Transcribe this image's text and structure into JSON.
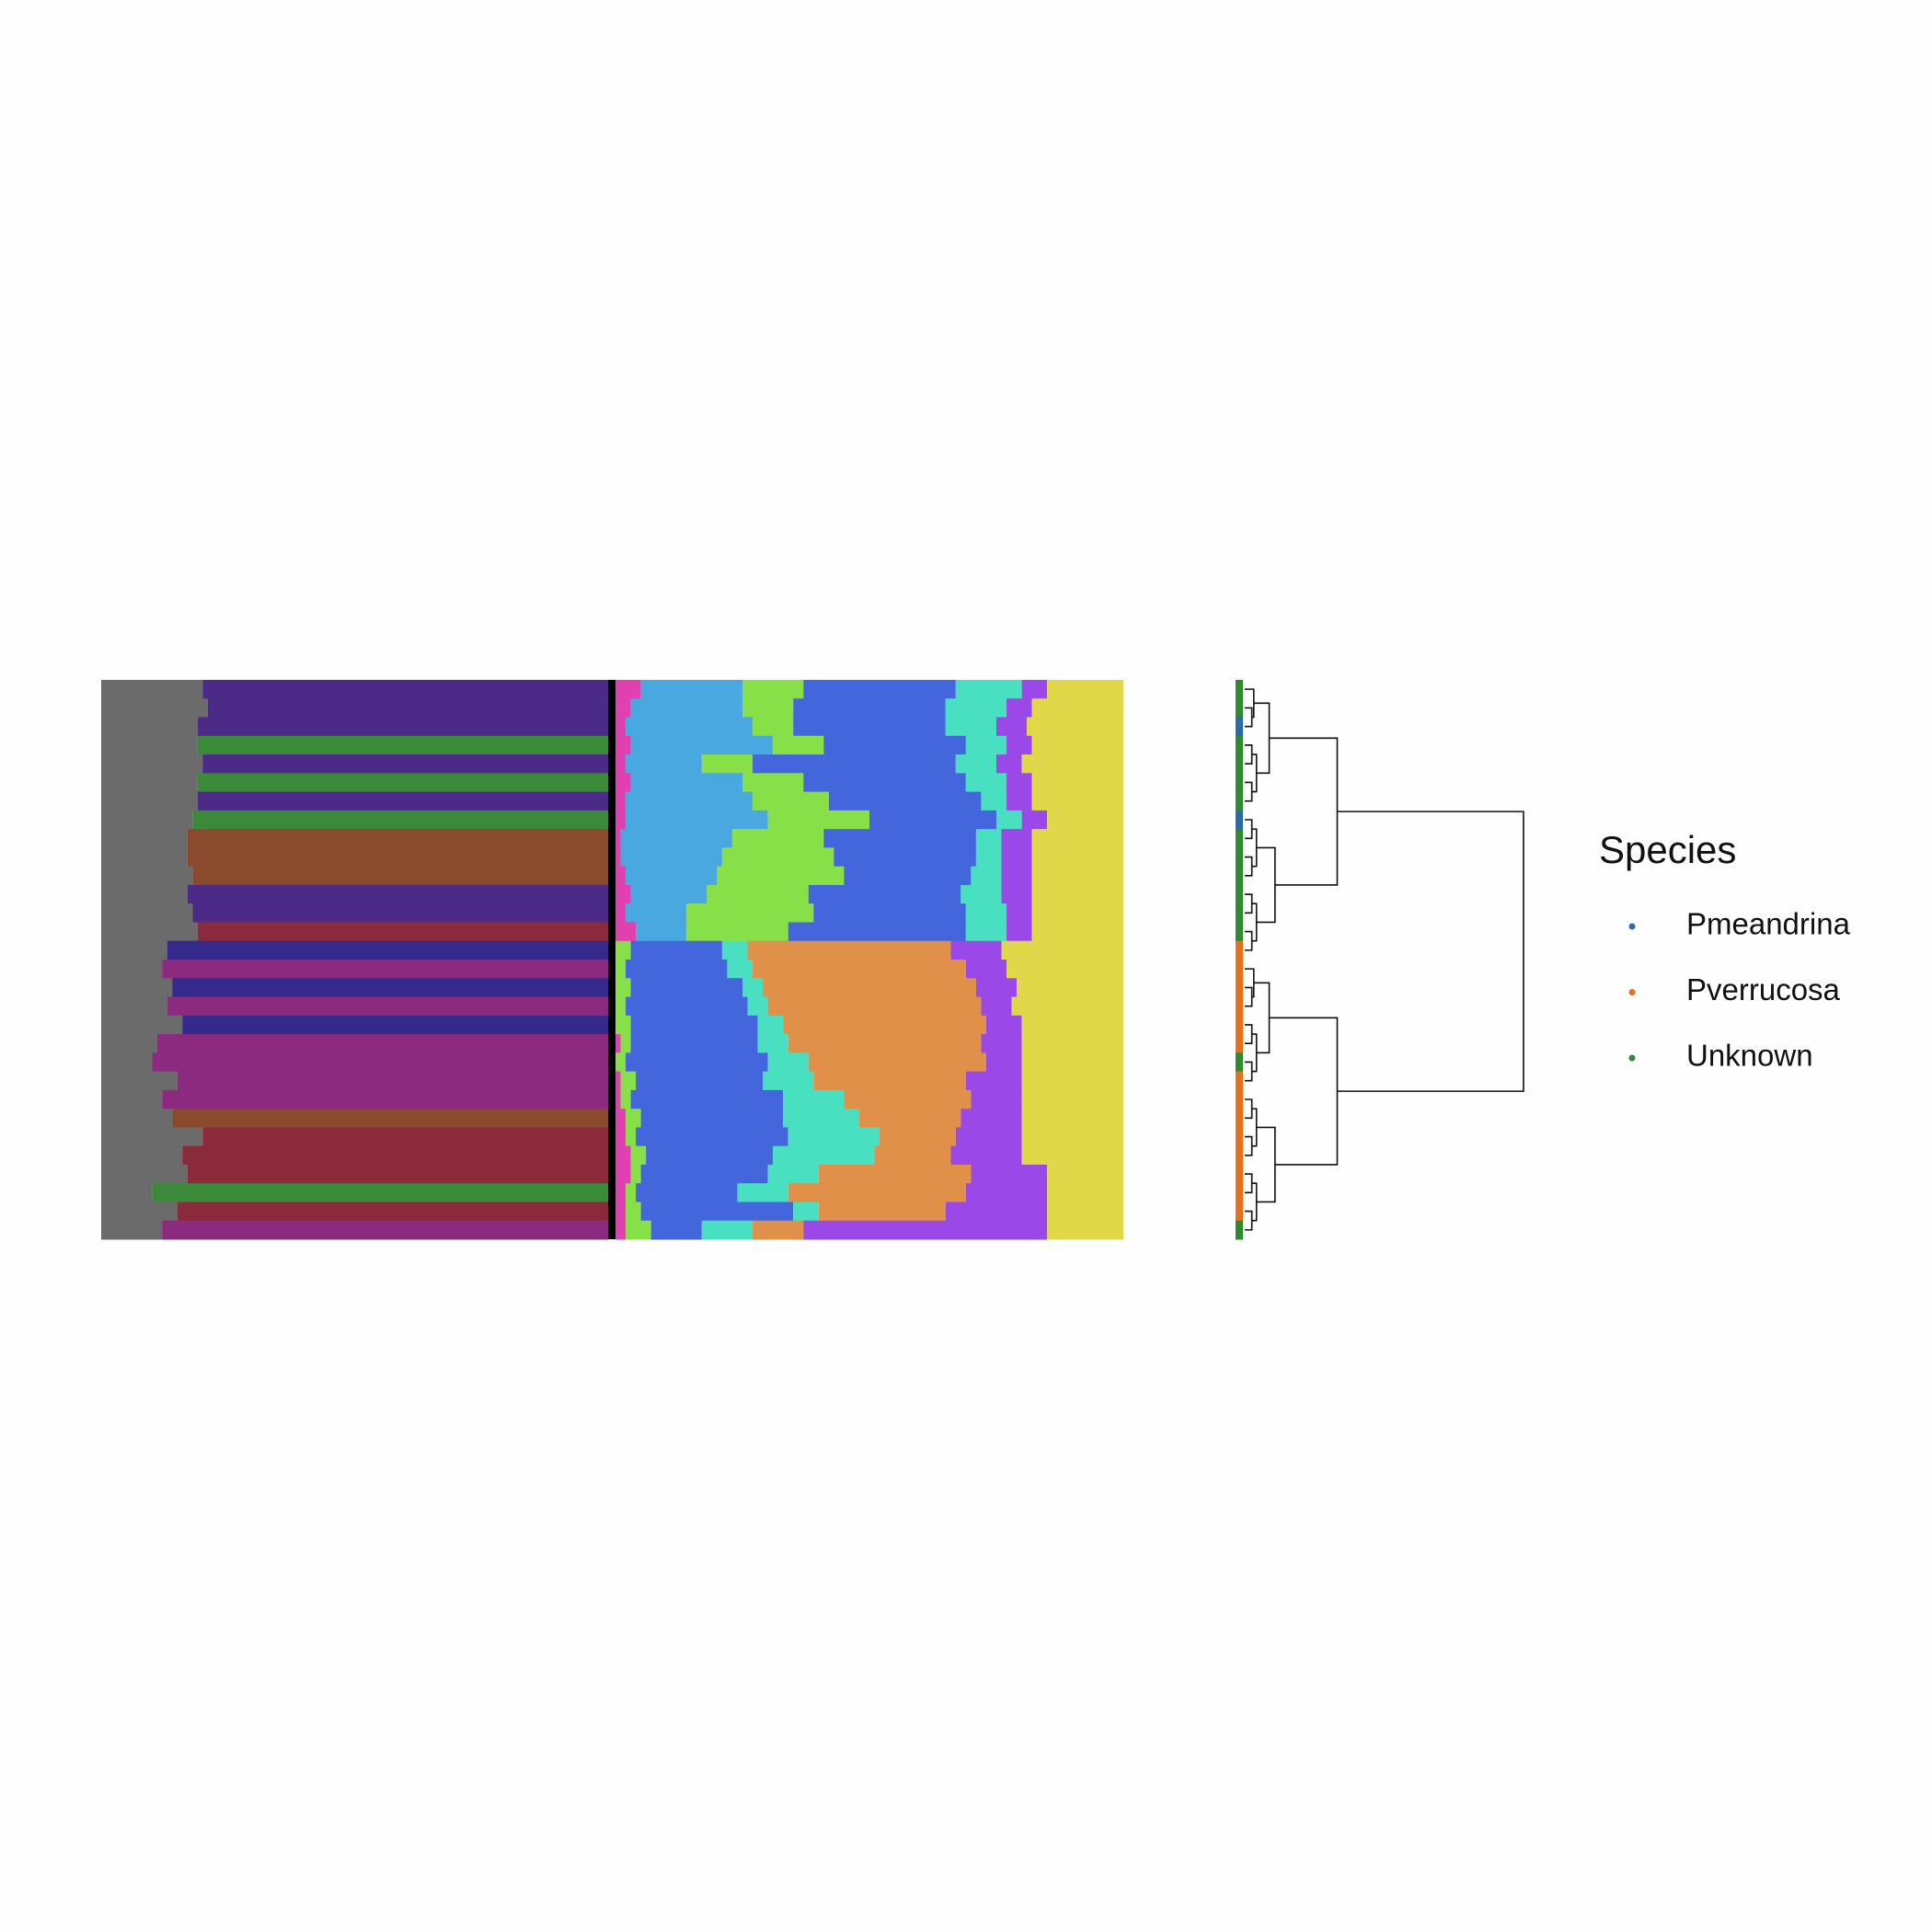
{
  "chart_data": [
    {
      "type": "stacked-bar-h",
      "xlim": [
        0,
        1
      ],
      "series": [
        {
          "color": "#6b6b6b",
          "values": [
            0.2,
            0.21,
            0.19,
            0.19,
            0.2,
            0.19,
            0.19,
            0.18,
            0.17,
            0.17,
            0.18,
            0.17,
            0.18,
            0.19,
            0.13,
            0.12,
            0.14,
            0.13,
            0.16,
            0.11,
            0.1,
            0.15,
            0.12,
            0.14,
            0.2,
            0.16,
            0.17,
            0.1,
            0.15,
            0.12
          ]
        },
        {
          "color": "#4b2a88",
          "values": [
            0.8,
            0.79,
            0.81,
            0,
            0.8,
            0,
            0.81,
            0,
            0,
            0,
            0,
            0.83,
            0.82,
            0,
            0,
            0,
            0,
            0,
            0,
            0,
            0,
            0,
            0,
            0,
            0,
            0,
            0,
            0,
            0,
            0
          ]
        },
        {
          "color": "#3a8a3a",
          "values": [
            0,
            0,
            0,
            0.81,
            0,
            0.81,
            0,
            0.82,
            0,
            0,
            0,
            0,
            0,
            0,
            0,
            0,
            0,
            0,
            0,
            0,
            0,
            0,
            0,
            0,
            0,
            0,
            0,
            0.9,
            0,
            0
          ]
        },
        {
          "color": "#8a4a2e",
          "values": [
            0,
            0,
            0,
            0,
            0,
            0,
            0,
            0,
            0.83,
            0.83,
            0.82,
            0,
            0,
            0,
            0,
            0,
            0,
            0,
            0,
            0,
            0,
            0,
            0,
            0.86,
            0,
            0,
            0,
            0,
            0,
            0
          ]
        },
        {
          "color": "#352a8c",
          "values": [
            0,
            0,
            0,
            0,
            0,
            0,
            0,
            0,
            0,
            0,
            0,
            0,
            0,
            0,
            0.87,
            0,
            0.86,
            0,
            0.84,
            0,
            0,
            0,
            0,
            0,
            0,
            0,
            0,
            0,
            0,
            0
          ]
        },
        {
          "color": "#8c2a80",
          "values": [
            0,
            0,
            0,
            0,
            0,
            0,
            0,
            0,
            0,
            0,
            0,
            0,
            0,
            0,
            0,
            0.88,
            0,
            0.87,
            0,
            0.89,
            0.9,
            0.85,
            0.88,
            0,
            0,
            0,
            0,
            0,
            0,
            0.88
          ]
        },
        {
          "color": "#8a2a3a",
          "values": [
            0,
            0,
            0,
            0,
            0,
            0,
            0,
            0,
            0,
            0,
            0,
            0,
            0,
            0.81,
            0,
            0,
            0,
            0,
            0,
            0,
            0,
            0,
            0,
            0,
            0.8,
            0.84,
            0.83,
            0,
            0.85,
            0
          ]
        }
      ]
    },
    {
      "type": "stacked-bar-h",
      "xlim": [
        0,
        1
      ],
      "series": [
        {
          "color": "#e040b0",
          "values": [
            0.05,
            0.03,
            0.02,
            0.03,
            0.02,
            0.03,
            0.02,
            0.02,
            0.01,
            0.01,
            0.02,
            0.03,
            0.02,
            0.04,
            0,
            0,
            0,
            0,
            0,
            0.01,
            0,
            0.01,
            0.01,
            0.02,
            0.02,
            0.03,
            0.03,
            0.02,
            0.02,
            0.02
          ]
        },
        {
          "color": "#4aa8e0",
          "values": [
            0.2,
            0.22,
            0.25,
            0.28,
            0.15,
            0.22,
            0.25,
            0.28,
            0.22,
            0.2,
            0.18,
            0.15,
            0.12,
            0.1,
            0,
            0,
            0,
            0,
            0,
            0,
            0,
            0,
            0,
            0,
            0,
            0,
            0,
            0,
            0,
            0
          ]
        },
        {
          "color": "#88e048",
          "values": [
            0.12,
            0.1,
            0.08,
            0.1,
            0.1,
            0.12,
            0.15,
            0.2,
            0.18,
            0.22,
            0.25,
            0.2,
            0.25,
            0.2,
            0.03,
            0.02,
            0.03,
            0.02,
            0.03,
            0.02,
            0.02,
            0.03,
            0.02,
            0.03,
            0.02,
            0.03,
            0.02,
            0.02,
            0.03,
            0.05
          ]
        },
        {
          "color": "#4466dd",
          "values": [
            0.3,
            0.3,
            0.3,
            0.28,
            0.4,
            0.32,
            0.3,
            0.25,
            0.3,
            0.28,
            0.25,
            0.3,
            0.3,
            0.35,
            0.18,
            0.2,
            0.22,
            0.24,
            0.25,
            0.25,
            0.28,
            0.25,
            0.3,
            0.28,
            0.3,
            0.25,
            0.25,
            0.2,
            0.3,
            0.1
          ]
        },
        {
          "color": "#48e0c0",
          "values": [
            0.13,
            0.12,
            0.1,
            0.08,
            0.08,
            0.08,
            0.05,
            0.05,
            0.05,
            0.05,
            0.06,
            0.08,
            0.08,
            0.08,
            0.05,
            0.05,
            0.04,
            0.04,
            0.05,
            0.06,
            0.08,
            0.1,
            0.12,
            0.15,
            0.18,
            0.2,
            0.1,
            0.1,
            0.05,
            0.1
          ]
        },
        {
          "color": "#e09048",
          "values": [
            0,
            0,
            0,
            0,
            0,
            0,
            0,
            0,
            0,
            0,
            0,
            0,
            0,
            0,
            0.4,
            0.42,
            0.42,
            0.42,
            0.4,
            0.38,
            0.35,
            0.3,
            0.25,
            0.2,
            0.15,
            0.15,
            0.3,
            0.35,
            0.25,
            0.1
          ]
        },
        {
          "color": "#9a48e8",
          "values": [
            0.05,
            0.05,
            0.06,
            0.05,
            0.05,
            0.05,
            0.05,
            0.05,
            0.06,
            0.06,
            0.06,
            0.06,
            0.05,
            0.05,
            0.1,
            0.08,
            0.08,
            0.06,
            0.07,
            0.08,
            0.07,
            0.11,
            0.1,
            0.12,
            0.13,
            0.14,
            0.15,
            0.16,
            0.2,
            0.48
          ]
        },
        {
          "color": "#e0d848",
          "values": [
            0.15,
            0.18,
            0.19,
            0.18,
            0.2,
            0.18,
            0.18,
            0.15,
            0.18,
            0.18,
            0.18,
            0.18,
            0.18,
            0.18,
            0.24,
            0.23,
            0.21,
            0.22,
            0.2,
            0.2,
            0.2,
            0.2,
            0.2,
            0.2,
            0.2,
            0.2,
            0.15,
            0.15,
            0.15,
            0.15
          ]
        }
      ]
    },
    {
      "type": "dendrogram",
      "tips": [
        2,
        2,
        0,
        2,
        2,
        2,
        2,
        0,
        2,
        2,
        2,
        2,
        2,
        2,
        1,
        1,
        1,
        1,
        1,
        1,
        2,
        1,
        1,
        1,
        1,
        1,
        1,
        1,
        1,
        2
      ],
      "legend_title": "Species",
      "series": [
        {
          "name": "Pmeandrina",
          "color": "#2b6ca8"
        },
        {
          "name": "Pverrucosa",
          "color": "#e8701a"
        },
        {
          "name": "Unknown",
          "color": "#2e8b2e"
        }
      ]
    }
  ]
}
